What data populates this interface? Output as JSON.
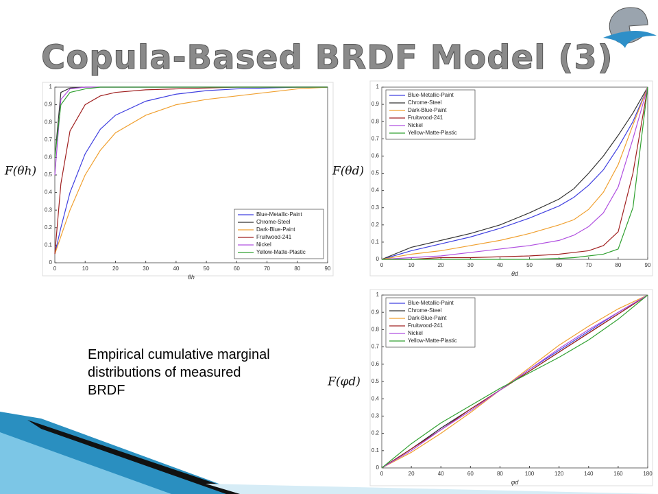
{
  "title": "Copula-Based BRDF Model (3)",
  "caption": "Empirical cumulative marginal distributions of measured BRDF",
  "chart_data": [
    {
      "type": "line",
      "ylabel": "F(θh)",
      "xlabel": "θh",
      "legend": "lower right",
      "grid": false,
      "xlim": [
        0,
        90
      ],
      "ylim": [
        0,
        1
      ],
      "xticks": [
        0,
        10,
        20,
        30,
        40,
        50,
        60,
        70,
        80,
        90
      ],
      "yticks": [
        0,
        0.1,
        0.2,
        0.3,
        0.4,
        0.5,
        0.6,
        0.7,
        0.8,
        0.9,
        1
      ],
      "x": [
        0,
        2,
        5,
        10,
        15,
        20,
        30,
        40,
        50,
        60,
        70,
        80,
        90
      ],
      "series": [
        {
          "name": "Blue-Metallic-Paint",
          "color": "#4040e0",
          "values": [
            0.05,
            0.2,
            0.4,
            0.62,
            0.76,
            0.84,
            0.92,
            0.96,
            0.98,
            0.99,
            0.995,
            1,
            1
          ]
        },
        {
          "name": "Chrome-Steel",
          "color": "#333333",
          "values": [
            0.6,
            0.97,
            0.995,
            1,
            1,
            1,
            1,
            1,
            1,
            1,
            1,
            1,
            1
          ]
        },
        {
          "name": "Dark-Blue-Paint",
          "color": "#f0a030",
          "values": [
            0.05,
            0.15,
            0.3,
            0.5,
            0.64,
            0.74,
            0.84,
            0.9,
            0.93,
            0.95,
            0.97,
            0.99,
            1
          ]
        },
        {
          "name": "Fruitwood-241",
          "color": "#a02020",
          "values": [
            0.05,
            0.45,
            0.75,
            0.9,
            0.95,
            0.97,
            0.985,
            0.99,
            0.995,
            1,
            1,
            1,
            1
          ]
        },
        {
          "name": "Nickel",
          "color": "#b050e0",
          "values": [
            0.5,
            0.93,
            0.99,
            1,
            1,
            1,
            1,
            1,
            1,
            1,
            1,
            1,
            1
          ]
        },
        {
          "name": "Yellow-Matte-Plastic",
          "color": "#30a030",
          "values": [
            0.6,
            0.9,
            0.97,
            0.99,
            1,
            1,
            1,
            1,
            1,
            1,
            1,
            1,
            1
          ]
        }
      ]
    },
    {
      "type": "line",
      "ylabel": "F(θd)",
      "xlabel": "θd",
      "legend": "upper left",
      "grid": false,
      "xlim": [
        0,
        90
      ],
      "ylim": [
        0,
        1
      ],
      "xticks": [
        0,
        10,
        20,
        30,
        40,
        50,
        60,
        70,
        80,
        90
      ],
      "yticks": [
        0,
        0.1,
        0.2,
        0.3,
        0.4,
        0.5,
        0.6,
        0.7,
        0.8,
        0.9,
        1
      ],
      "x": [
        0,
        10,
        20,
        30,
        40,
        50,
        60,
        65,
        70,
        75,
        80,
        85,
        90
      ],
      "series": [
        {
          "name": "Blue-Metallic-Paint",
          "color": "#4040e0",
          "values": [
            0,
            0.05,
            0.09,
            0.13,
            0.18,
            0.24,
            0.31,
            0.36,
            0.43,
            0.52,
            0.65,
            0.8,
            1
          ]
        },
        {
          "name": "Chrome-Steel",
          "color": "#333333",
          "values": [
            0,
            0.07,
            0.11,
            0.15,
            0.2,
            0.27,
            0.35,
            0.41,
            0.5,
            0.6,
            0.72,
            0.85,
            1
          ]
        },
        {
          "name": "Dark-Blue-Paint",
          "color": "#f0a030",
          "values": [
            0,
            0.03,
            0.05,
            0.08,
            0.11,
            0.15,
            0.2,
            0.23,
            0.29,
            0.39,
            0.55,
            0.78,
            1
          ]
        },
        {
          "name": "Fruitwood-241",
          "color": "#a02020",
          "values": [
            0,
            0,
            0.01,
            0.01,
            0.015,
            0.02,
            0.03,
            0.04,
            0.05,
            0.08,
            0.16,
            0.5,
            1
          ]
        },
        {
          "name": "Nickel",
          "color": "#b050e0",
          "values": [
            0,
            0.01,
            0.02,
            0.04,
            0.06,
            0.08,
            0.11,
            0.14,
            0.19,
            0.27,
            0.42,
            0.7,
            1
          ]
        },
        {
          "name": "Yellow-Matte-Plastic",
          "color": "#30a030",
          "values": [
            0,
            0,
            0,
            0,
            0,
            0,
            0.005,
            0.01,
            0.02,
            0.03,
            0.06,
            0.3,
            1
          ]
        }
      ]
    },
    {
      "type": "line",
      "ylabel": "F(φd)",
      "xlabel": "φd",
      "legend": "upper left",
      "grid": false,
      "xlim": [
        0,
        180
      ],
      "ylim": [
        0,
        1
      ],
      "xticks": [
        0,
        20,
        40,
        60,
        80,
        100,
        120,
        140,
        160,
        180
      ],
      "yticks": [
        0,
        0.1,
        0.2,
        0.3,
        0.4,
        0.5,
        0.6,
        0.7,
        0.8,
        0.9,
        1
      ],
      "x": [
        0,
        20,
        40,
        60,
        80,
        100,
        120,
        140,
        160,
        180
      ],
      "series": [
        {
          "name": "Blue-Metallic-Paint",
          "color": "#4040e0",
          "values": [
            0,
            0.11,
            0.23,
            0.34,
            0.45,
            0.57,
            0.68,
            0.79,
            0.9,
            1
          ]
        },
        {
          "name": "Chrome-Steel",
          "color": "#333333",
          "values": [
            0,
            0.11,
            0.23,
            0.34,
            0.45,
            0.56,
            0.67,
            0.78,
            0.89,
            1
          ]
        },
        {
          "name": "Dark-Blue-Paint",
          "color": "#f0a030",
          "values": [
            0,
            0.09,
            0.2,
            0.32,
            0.45,
            0.58,
            0.71,
            0.82,
            0.92,
            1
          ]
        },
        {
          "name": "Fruitwood-241",
          "color": "#a02020",
          "values": [
            0,
            0.11,
            0.22,
            0.34,
            0.45,
            0.56,
            0.67,
            0.78,
            0.89,
            1
          ]
        },
        {
          "name": "Nickel",
          "color": "#b050e0",
          "values": [
            0,
            0.1,
            0.22,
            0.33,
            0.45,
            0.57,
            0.69,
            0.8,
            0.9,
            1
          ]
        },
        {
          "name": "Yellow-Matte-Plastic",
          "color": "#30a030",
          "values": [
            0,
            0.14,
            0.26,
            0.36,
            0.46,
            0.55,
            0.64,
            0.74,
            0.86,
            1
          ]
        }
      ]
    }
  ]
}
